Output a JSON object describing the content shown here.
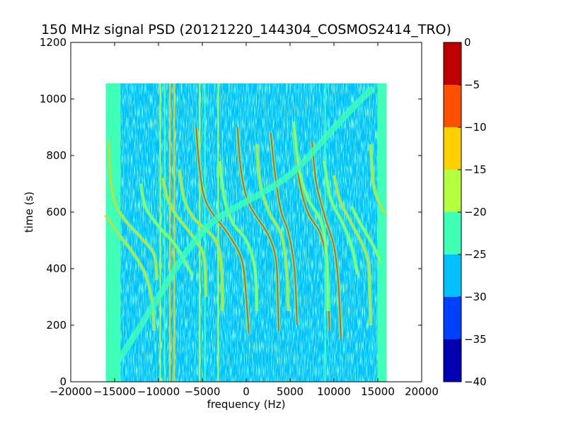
{
  "chart_data": {
    "type": "heatmap",
    "title": "150 MHz signal PSD (20121220_144304_COSMOS2414_TRO)",
    "xlabel": "frequency (Hz)",
    "ylabel": "time (s)",
    "xlim": [
      -20000,
      20000
    ],
    "ylim": [
      0,
      1200
    ],
    "xticks": [
      -20000,
      -15000,
      -10000,
      -5000,
      0,
      5000,
      10000,
      15000,
      20000
    ],
    "xtick_labels": [
      "−20000",
      "−15000",
      "−10000",
      "−5000",
      "0",
      "5000",
      "10000",
      "15000",
      "20000"
    ],
    "yticks": [
      0,
      200,
      400,
      600,
      800,
      1000,
      1200
    ],
    "ytick_labels": [
      "0",
      "200",
      "400",
      "600",
      "800",
      "1000",
      "1200"
    ],
    "data_extent": {
      "x": [
        -16000,
        16000
      ],
      "y": [
        0,
        1055
      ]
    },
    "colorbar": {
      "levels": [
        -40,
        -35,
        -30,
        -25,
        -20,
        -15,
        -10,
        -5,
        0
      ],
      "tick_labels": [
        "−40",
        "−35",
        "−30",
        "−25",
        "−20",
        "−15",
        "−10",
        "−5",
        "0"
      ],
      "colors": [
        "#0000b3",
        "#0040ff",
        "#00c0ff",
        "#40ffb7",
        "#b3ff40",
        "#ffd000",
        "#ff5000",
        "#c00000"
      ]
    },
    "background_level_color": "#00c0ff",
    "noise_level_color": "#40ffb7",
    "vertical_lines": [
      {
        "x": -9800,
        "color": "#b3ff40"
      },
      {
        "x": -9300,
        "color": "#40ffb7"
      },
      {
        "x": -8700,
        "color": "#ffd000"
      },
      {
        "x": -8200,
        "color": "#ffd000"
      },
      {
        "x": -5300,
        "color": "#b3ff40"
      },
      {
        "x": -4700,
        "color": "#40ffb7"
      },
      {
        "x": -3200,
        "color": "#b3ff40"
      },
      {
        "x": 9000,
        "color": "#40ffb7"
      }
    ],
    "series": [
      {
        "color": "#ff5000",
        "points": [
          [
            -5700,
            900
          ],
          [
            -5300,
            750
          ],
          [
            -4500,
            630
          ],
          [
            -2000,
            520
          ],
          [
            -500,
            430
          ],
          [
            0,
            300
          ],
          [
            300,
            170
          ]
        ]
      },
      {
        "color": "#ff5000",
        "points": [
          [
            -1000,
            900
          ],
          [
            -600,
            750
          ],
          [
            300,
            630
          ],
          [
            2500,
            520
          ],
          [
            3400,
            430
          ],
          [
            3600,
            300
          ],
          [
            3700,
            180
          ]
        ]
      },
      {
        "color": "#ff5000",
        "points": [
          [
            2800,
            880
          ],
          [
            3300,
            730
          ],
          [
            4000,
            600
          ],
          [
            4800,
            530
          ],
          [
            5500,
            400
          ],
          [
            5800,
            200
          ]
        ]
      },
      {
        "color": "#ff5000",
        "points": [
          [
            5400,
            880
          ],
          [
            6000,
            720
          ],
          [
            7000,
            600
          ],
          [
            8500,
            520
          ],
          [
            9200,
            400
          ],
          [
            9500,
            180
          ]
        ]
      },
      {
        "color": "#ff5000",
        "points": [
          [
            7500,
            850
          ],
          [
            8000,
            700
          ],
          [
            9000,
            580
          ],
          [
            10000,
            480
          ],
          [
            10500,
            350
          ],
          [
            10800,
            150
          ]
        ]
      },
      {
        "color": "#ffd000",
        "points": [
          [
            -15700,
            850
          ],
          [
            -15400,
            700
          ],
          [
            -14800,
            620
          ],
          [
            -13500,
            560
          ],
          [
            -12000,
            510
          ],
          [
            -10500,
            450
          ],
          [
            -10200,
            360
          ]
        ]
      },
      {
        "color": "#ffd000",
        "points": [
          [
            -16000,
            590
          ],
          [
            -14500,
            520
          ],
          [
            -13000,
            460
          ],
          [
            -11500,
            380
          ],
          [
            -10700,
            280
          ],
          [
            -10500,
            180
          ]
        ]
      },
      {
        "color": "#ffd000",
        "points": [
          [
            -9500,
            720
          ],
          [
            -9000,
            650
          ],
          [
            -8000,
            590
          ],
          [
            -6000,
            510
          ],
          [
            -4800,
            440
          ],
          [
            -4600,
            300
          ]
        ]
      },
      {
        "color": "#b3ff40",
        "points": [
          [
            -12000,
            700
          ],
          [
            -11500,
            620
          ],
          [
            -10000,
            550
          ],
          [
            -8000,
            480
          ],
          [
            -6200,
            380
          ]
        ]
      },
      {
        "color": "#ffd000",
        "points": [
          [
            -7600,
            750
          ],
          [
            -7100,
            650
          ],
          [
            -6000,
            580
          ],
          [
            -3500,
            500
          ],
          [
            -2800,
            400
          ],
          [
            -2700,
            250
          ]
        ]
      },
      {
        "color": "#b3ff40",
        "points": [
          [
            -3000,
            780
          ],
          [
            -2500,
            650
          ],
          [
            -1500,
            560
          ],
          [
            0,
            500
          ],
          [
            1000,
            400
          ],
          [
            1200,
            250
          ]
        ]
      },
      {
        "color": "#ffd000",
        "points": [
          [
            1200,
            840
          ],
          [
            1600,
            700
          ],
          [
            2600,
            600
          ],
          [
            4000,
            520
          ],
          [
            4600,
            400
          ],
          [
            4800,
            250
          ]
        ]
      },
      {
        "color": "#b3ff40",
        "points": [
          [
            5400,
            920
          ],
          [
            6000,
            760
          ],
          [
            7000,
            650
          ],
          [
            8600,
            560
          ],
          [
            9200,
            430
          ],
          [
            9300,
            250
          ]
        ]
      },
      {
        "color": "#b3ff40",
        "points": [
          [
            8900,
            780
          ],
          [
            9600,
            650
          ],
          [
            11000,
            560
          ],
          [
            12000,
            480
          ],
          [
            12700,
            380
          ]
        ]
      },
      {
        "color": "#ffd000",
        "points": [
          [
            10000,
            730
          ],
          [
            10700,
            640
          ],
          [
            12000,
            560
          ],
          [
            13800,
            440
          ],
          [
            14100,
            300
          ],
          [
            14200,
            200
          ]
        ]
      },
      {
        "color": "#b3ff40",
        "points": [
          [
            12000,
            620
          ],
          [
            13000,
            560
          ],
          [
            14500,
            480
          ],
          [
            15400,
            420
          ]
        ]
      },
      {
        "color": "#ffd000",
        "points": [
          [
            14200,
            840
          ],
          [
            14500,
            700
          ],
          [
            15200,
            630
          ],
          [
            15900,
            590
          ]
        ]
      },
      {
        "color": "#40ffb7",
        "points": [
          [
            -15800,
            20
          ],
          [
            -13000,
            150
          ],
          [
            -10000,
            300
          ],
          [
            -7000,
            450
          ],
          [
            -4000,
            560
          ],
          [
            -1000,
            620
          ],
          [
            3000,
            690
          ],
          [
            6000,
            760
          ],
          [
            9500,
            880
          ],
          [
            12500,
            980
          ],
          [
            14500,
            1040
          ]
        ]
      }
    ]
  }
}
